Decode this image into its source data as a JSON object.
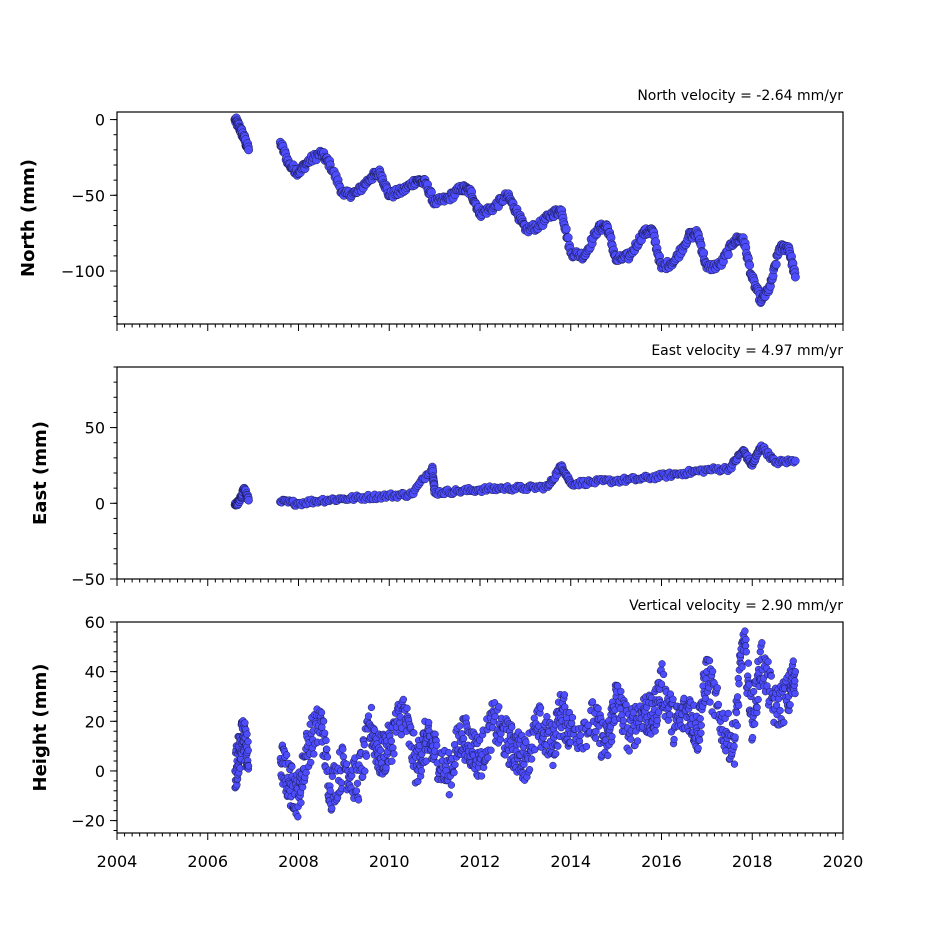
{
  "colors": {
    "marker_fill": "#4d4dff",
    "marker_edge": "#1a1a4a"
  },
  "chart_data": [
    {
      "type": "scatter",
      "title": "North velocity = -2.64 mm/yr",
      "xlabel": "",
      "ylabel": "North (mm)",
      "xlim": [
        2004,
        2020
      ],
      "ylim": [
        -135,
        5
      ],
      "x_ticks": [
        2004,
        2006,
        2008,
        2010,
        2012,
        2014,
        2016,
        2018,
        2020
      ],
      "y_ticks": [
        0,
        -50,
        -100
      ],
      "y_tick_labels": [
        "0",
        "−50",
        "−100"
      ],
      "show_x_tick_labels": false,
      "grid": false,
      "series": [
        {
          "x": [
            2006.6,
            2006.7,
            2006.8,
            2006.9,
            2007.6,
            2007.8,
            2008.0,
            2008.2,
            2008.5,
            2008.7,
            2009.0,
            2009.3,
            2009.6,
            2009.8,
            2010.0,
            2010.3,
            2010.6,
            2010.8,
            2011.0,
            2011.3,
            2011.6,
            2011.8,
            2012.0,
            2012.3,
            2012.6,
            2012.8,
            2013.0,
            2013.3,
            2013.6,
            2013.8,
            2014.0,
            2014.3,
            2014.6,
            2014.8,
            2015.0,
            2015.3,
            2015.6,
            2015.8,
            2016.0,
            2016.3,
            2016.6,
            2016.8,
            2017.0,
            2017.3,
            2017.6,
            2017.8,
            2018.0,
            2018.2,
            2018.4,
            2018.6,
            2018.8,
            2018.95
          ],
          "y": [
            0,
            -5,
            -12,
            -20,
            -15,
            -30,
            -35,
            -28,
            -22,
            -30,
            -50,
            -48,
            -38,
            -35,
            -50,
            -47,
            -40,
            -42,
            -55,
            -52,
            -45,
            -48,
            -62,
            -58,
            -50,
            -60,
            -73,
            -70,
            -62,
            -60,
            -88,
            -90,
            -72,
            -70,
            -93,
            -90,
            -75,
            -73,
            -98,
            -93,
            -77,
            -75,
            -98,
            -96,
            -80,
            -78,
            -105,
            -120,
            -110,
            -85,
            -84,
            -104
          ]
        }
      ]
    },
    {
      "type": "scatter",
      "title": "East velocity = 4.97 mm/yr",
      "xlabel": "",
      "ylabel": "East (mm)",
      "xlim": [
        2004,
        2020
      ],
      "ylim": [
        -50,
        90
      ],
      "x_ticks": [
        2004,
        2006,
        2008,
        2010,
        2012,
        2014,
        2016,
        2018,
        2020
      ],
      "y_ticks": [
        50,
        0,
        -50
      ],
      "y_tick_labels": [
        "50",
        "0",
        "−50"
      ],
      "show_x_tick_labels": false,
      "grid": false,
      "series": [
        {
          "x": [
            2006.6,
            2006.7,
            2006.8,
            2006.9,
            2007.6,
            2008.0,
            2008.5,
            2009.0,
            2009.5,
            2010.0,
            2010.5,
            2010.95,
            2011.0,
            2011.5,
            2012.0,
            2012.5,
            2013.0,
            2013.5,
            2013.8,
            2014.0,
            2014.5,
            2015.0,
            2015.5,
            2016.0,
            2016.5,
            2017.0,
            2017.5,
            2017.8,
            2018.0,
            2018.2,
            2018.5,
            2018.95
          ],
          "y": [
            -1,
            1,
            10,
            2,
            1,
            0,
            2,
            3,
            4,
            5,
            6,
            24,
            7,
            8,
            9,
            10,
            10,
            11,
            25,
            13,
            14,
            15,
            16,
            18,
            20,
            22,
            23,
            35,
            25,
            38,
            27,
            28
          ]
        }
      ]
    },
    {
      "type": "scatter",
      "title": "Vertical velocity = 2.90 mm/yr",
      "xlabel": "",
      "ylabel": "Height (mm)",
      "xlim": [
        2004,
        2020
      ],
      "ylim": [
        -25,
        60
      ],
      "x_ticks": [
        2004,
        2006,
        2008,
        2010,
        2012,
        2014,
        2016,
        2018,
        2020
      ],
      "x_tick_labels": [
        "2004",
        "2006",
        "2008",
        "2010",
        "2012",
        "2014",
        "2016",
        "2018",
        "2020"
      ],
      "y_ticks": [
        60,
        40,
        20,
        0,
        -20
      ],
      "y_tick_labels": [
        "60",
        "40",
        "20",
        "0",
        "−20"
      ],
      "show_x_tick_labels": true,
      "grid": false,
      "series": [
        {
          "x": [
            2006.6,
            2006.7,
            2006.8,
            2006.9,
            2007.6,
            2007.8,
            2008.0,
            2008.2,
            2008.5,
            2008.7,
            2009.0,
            2009.3,
            2009.6,
            2009.8,
            2010.0,
            2010.3,
            2010.6,
            2010.8,
            2011.0,
            2011.3,
            2011.6,
            2011.8,
            2012.0,
            2012.3,
            2012.6,
            2012.8,
            2013.0,
            2013.3,
            2013.6,
            2013.8,
            2014.0,
            2014.5,
            2014.8,
            2015.0,
            2015.3,
            2015.6,
            2015.8,
            2016.0,
            2016.3,
            2016.6,
            2016.8,
            2017.0,
            2017.3,
            2017.6,
            2017.8,
            2018.0,
            2018.2,
            2018.5,
            2018.8,
            2018.95
          ],
          "y": [
            0,
            8,
            15,
            2,
            5,
            -5,
            -10,
            10,
            20,
            -8,
            3,
            -5,
            18,
            5,
            10,
            25,
            2,
            12,
            8,
            -2,
            15,
            10,
            5,
            20,
            12,
            8,
            5,
            18,
            10,
            25,
            15,
            20,
            10,
            30,
            15,
            25,
            20,
            35,
            18,
            25,
            15,
            40,
            20,
            10,
            55,
            20,
            45,
            25,
            30,
            40
          ]
        }
      ]
    }
  ]
}
